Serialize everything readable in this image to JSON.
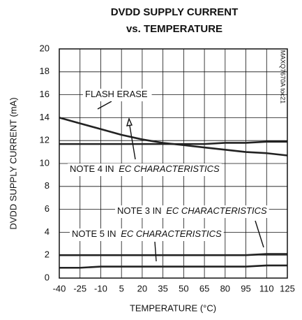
{
  "chart_data": {
    "type": "line",
    "title": "DVDD SUPPLY CURRENT",
    "subtitle": "vs. TEMPERATURE",
    "x_label": "TEMPERATURE (°C)",
    "y_label": "DVDD SUPPLY CURRENT (mA)",
    "side_note": "MAXQ7670A toc21",
    "x": [
      -40,
      -25,
      -10,
      5,
      20,
      35,
      50,
      65,
      80,
      95,
      110,
      125
    ],
    "xlim": [
      -40,
      125
    ],
    "xticks": [
      -40,
      -25,
      -10,
      5,
      20,
      35,
      50,
      65,
      80,
      95,
      110,
      125
    ],
    "ylim": [
      0,
      20
    ],
    "yticks": [
      0,
      2,
      4,
      6,
      8,
      10,
      12,
      14,
      16,
      18,
      20
    ],
    "grid": true,
    "series": [
      {
        "name": "FLASH ERASE",
        "color": "#222222",
        "values": [
          14.0,
          13.5,
          13.0,
          12.5,
          12.1,
          11.8,
          11.6,
          11.4,
          11.2,
          11.0,
          10.9,
          10.7
        ]
      },
      {
        "name": "NOTE 4",
        "color": "#222222",
        "values": [
          11.7,
          11.7,
          11.7,
          11.7,
          11.7,
          11.7,
          11.7,
          11.7,
          11.8,
          11.8,
          11.9,
          11.9
        ]
      },
      {
        "name": "NOTE 3",
        "color": "#222222",
        "values": [
          2.0,
          2.0,
          2.0,
          2.0,
          2.0,
          2.0,
          2.0,
          2.0,
          2.0,
          2.0,
          2.1,
          2.1
        ]
      },
      {
        "name": "NOTE 5",
        "color": "#222222",
        "values": [
          0.9,
          0.9,
          1.0,
          1.0,
          1.0,
          1.0,
          1.0,
          1.0,
          1.0,
          1.0,
          1.1,
          1.1
        ]
      }
    ],
    "annotations": [
      {
        "text": "FLASH ERASE"
      },
      {
        "text": "NOTE 4 IN ",
        "emphasis": "EC CHARACTERISTICS"
      },
      {
        "text": "NOTE 3 IN ",
        "emphasis": "EC CHARACTERISTICS"
      },
      {
        "text": "NOTE 5 IN ",
        "emphasis": "EC CHARACTERISTICS"
      }
    ]
  }
}
